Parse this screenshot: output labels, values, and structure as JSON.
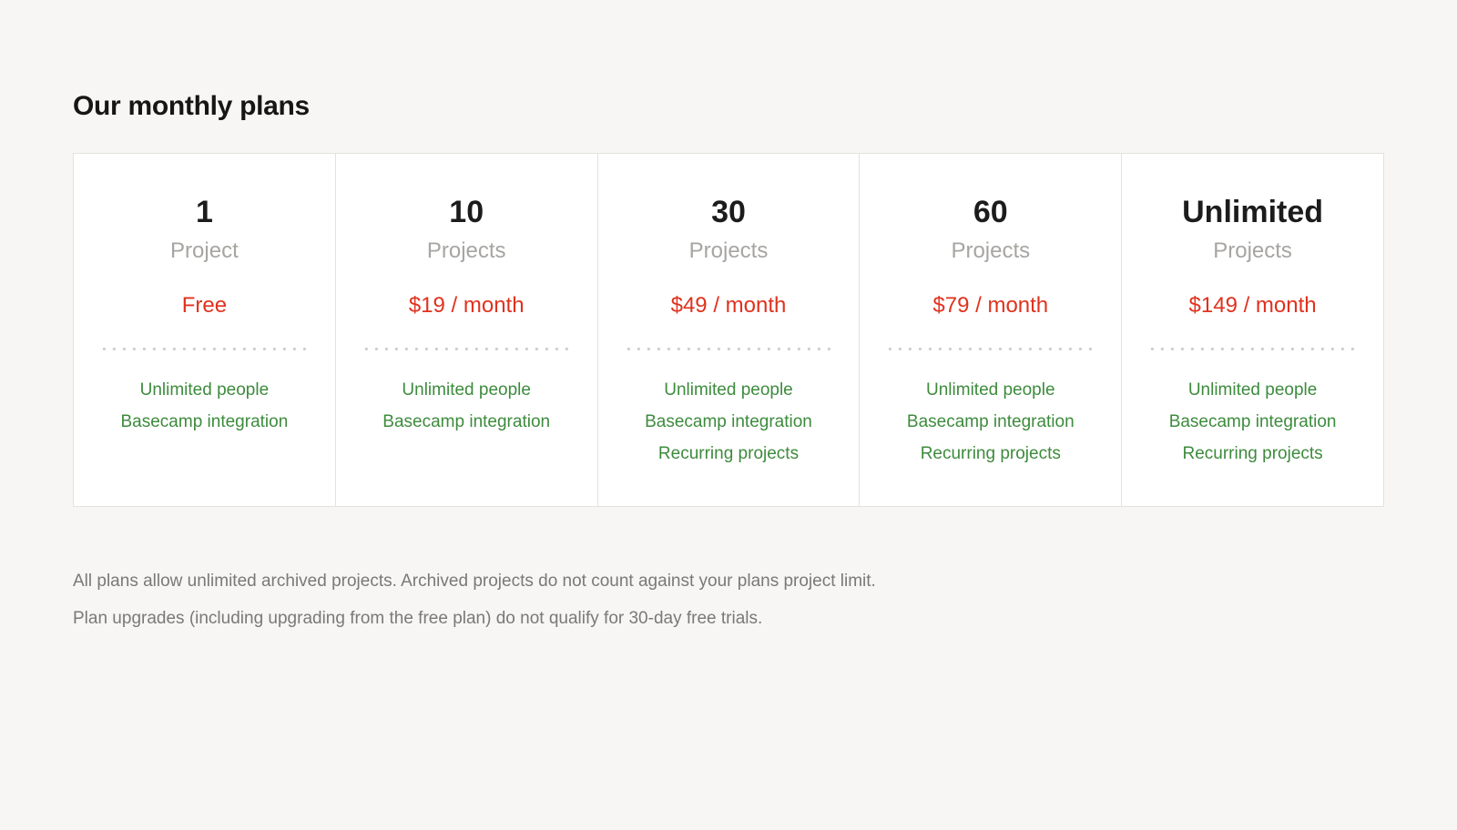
{
  "page": {
    "title": "Our monthly plans",
    "footnote_line1": "All plans allow unlimited archived projects. Archived projects do not count against your plans project limit.",
    "footnote_line2": "Plan upgrades (including upgrading from the free plan) do not qualify for 30-day free trials."
  },
  "colors": {
    "price_red": "#e0321e",
    "feature_green": "#3d8b3d",
    "card_border": "#e4e2de",
    "text_gray": "#a7a5a2",
    "bg": "#f7f6f4"
  },
  "plans": [
    {
      "quantity": "1",
      "unit": "Project",
      "price": "Free",
      "features": [
        "Unlimited people",
        "Basecamp integration"
      ]
    },
    {
      "quantity": "10",
      "unit": "Projects",
      "price": "$19 / month",
      "features": [
        "Unlimited people",
        "Basecamp integration"
      ]
    },
    {
      "quantity": "30",
      "unit": "Projects",
      "price": "$49 / month",
      "features": [
        "Unlimited people",
        "Basecamp integration",
        "Recurring projects"
      ]
    },
    {
      "quantity": "60",
      "unit": "Projects",
      "price": "$79 / month",
      "features": [
        "Unlimited people",
        "Basecamp integration",
        "Recurring projects"
      ]
    },
    {
      "quantity": "Unlimited",
      "unit": "Projects",
      "price": "$149 / month",
      "features": [
        "Unlimited people",
        "Basecamp integration",
        "Recurring projects"
      ]
    }
  ]
}
